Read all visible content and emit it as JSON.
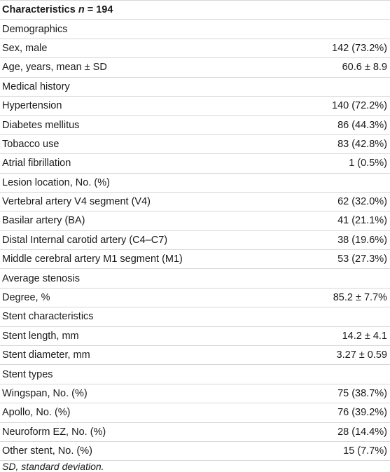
{
  "header": {
    "label": "Characteristics",
    "n_symbol": "n",
    "n_value": "= 194"
  },
  "rows": [
    {
      "label": "Demographics",
      "value": ""
    },
    {
      "label": "Sex, male",
      "value": "142 (73.2%)"
    },
    {
      "label": "Age, years, mean ± SD",
      "value": "60.6 ± 8.9"
    },
    {
      "label": "Medical history",
      "value": ""
    },
    {
      "label": "Hypertension",
      "value": "140 (72.2%)"
    },
    {
      "label": "Diabetes mellitus",
      "value": "86 (44.3%)"
    },
    {
      "label": "Tobacco use",
      "value": "83 (42.8%)"
    },
    {
      "label": "Atrial fibrillation",
      "value": "1 (0.5%)"
    },
    {
      "label": "Lesion location, No. (%)",
      "value": ""
    },
    {
      "label": "Vertebral artery V4 segment (V4)",
      "value": "62 (32.0%)"
    },
    {
      "label": "Basilar artery (BA)",
      "value": "41 (21.1%)"
    },
    {
      "label": "Distal Internal carotid artery (C4–C7)",
      "value": "38 (19.6%)"
    },
    {
      "label": "Middle cerebral artery M1 segment (M1)",
      "value": "53 (27.3%)"
    },
    {
      "label": "Average stenosis",
      "value": ""
    },
    {
      "label": "Degree, %",
      "value": "85.2 ± 7.7%"
    },
    {
      "label": "Stent characteristics",
      "value": ""
    },
    {
      "label": "Stent length, mm",
      "value": "14.2 ± 4.1"
    },
    {
      "label": "Stent diameter, mm",
      "value": "3.27 ± 0.59"
    },
    {
      "label": "Stent types",
      "value": ""
    },
    {
      "label": "Wingspan, No. (%)",
      "value": "75 (38.7%)"
    },
    {
      "label": "Apollo, No. (%)",
      "value": "76 (39.2%)"
    },
    {
      "label": "Neuroform EZ, No. (%)",
      "value": "28 (14.4%)"
    },
    {
      "label": "Other stent, No. (%)",
      "value": "15 (7.7%)"
    }
  ],
  "footnote": "SD, standard deviation."
}
